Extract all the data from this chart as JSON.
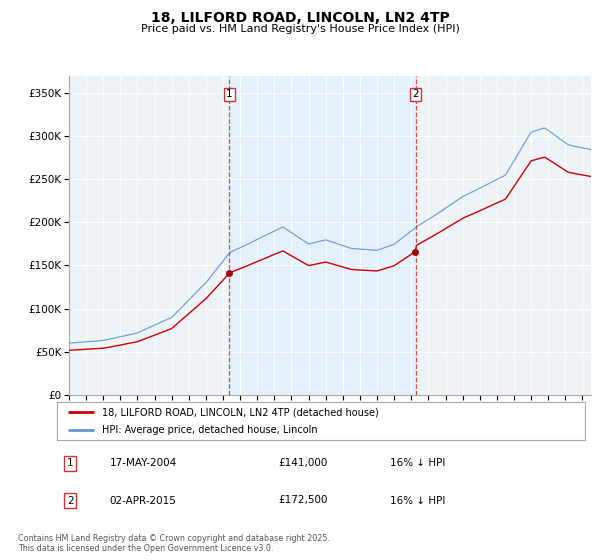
{
  "title": "18, LILFORD ROAD, LINCOLN, LN2 4TP",
  "subtitle": "Price paid vs. HM Land Registry's House Price Index (HPI)",
  "legend_entry1": "18, LILFORD ROAD, LINCOLN, LN2 4TP (detached house)",
  "legend_entry2": "HPI: Average price, detached house, Lincoln",
  "sale1_date": "17-MAY-2004",
  "sale1_price": 141000,
  "sale1_label": "16% ↓ HPI",
  "sale2_date": "02-APR-2015",
  "sale2_price": 172500,
  "sale2_label": "16% ↓ HPI",
  "copyright": "Contains HM Land Registry data © Crown copyright and database right 2025.\nThis data is licensed under the Open Government Licence v3.0.",
  "vline1_x": 2004.37,
  "vline2_x": 2015.25,
  "price_color": "#cc0000",
  "hpi_color": "#6699cc",
  "hpi_fill_color": "#ddeeff",
  "background_color": "#eef3f8",
  "sale_marker_color": "#aa0000",
  "ylim_min": 0,
  "ylim_max": 370000,
  "xlim_start": 1995.0,
  "xlim_end": 2025.5,
  "yticks": [
    0,
    50000,
    100000,
    150000,
    200000,
    250000,
    300000,
    350000
  ],
  "xticks": [
    1995,
    1996,
    1997,
    1998,
    1999,
    2000,
    2001,
    2002,
    2003,
    2004,
    2005,
    2006,
    2007,
    2008,
    2009,
    2010,
    2011,
    2012,
    2013,
    2014,
    2015,
    2016,
    2017,
    2018,
    2019,
    2020,
    2021,
    2022,
    2023,
    2024,
    2025
  ]
}
